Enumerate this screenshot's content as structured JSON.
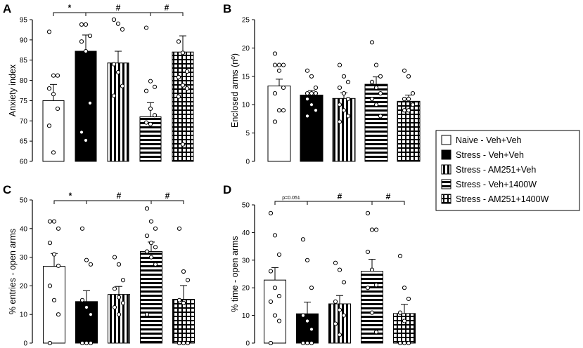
{
  "legend": [
    {
      "label": "Naive - Veh+Veh",
      "pattern": "white"
    },
    {
      "label": "Stress - Veh+Veh",
      "pattern": "black"
    },
    {
      "label": "Stress - AM251+Veh",
      "pattern": "vertical"
    },
    {
      "label": "Stress - Veh+1400W",
      "pattern": "horizontal"
    },
    {
      "label": "Stress - AM251+1400W",
      "pattern": "grid"
    }
  ],
  "chart_data": [
    {
      "panel": "A",
      "type": "bar",
      "ylabel": "Anxiety index",
      "ylim": [
        60,
        95
      ],
      "yticks": [
        60,
        65,
        70,
        75,
        80,
        85,
        90,
        95
      ],
      "categories": [
        "Naive - Veh+Veh",
        "Stress - Veh+Veh",
        "Stress - AM251+Veh",
        "Stress - Veh+1400W",
        "Stress - AM251+1400W"
      ],
      "values": [
        75.0,
        87.2,
        84.3,
        71.0,
        87.0
      ],
      "errors": [
        4.0,
        4.0,
        2.9,
        3.5,
        4.0
      ],
      "points": [
        [
          92,
          81.2,
          81.2,
          78,
          76.6,
          73,
          68.8,
          62.2
        ],
        [
          93.8,
          93.8,
          91,
          89.6,
          87.2,
          74.4,
          67.2,
          65.2
        ],
        [
          95,
          94,
          92.6,
          84,
          82,
          78.6,
          76.2
        ],
        [
          93,
          79.8,
          78.4,
          77.4,
          73,
          71.4,
          69.6,
          69.2
        ],
        [
          89.6,
          86.8,
          82.2,
          80.8,
          78.8,
          78,
          76,
          64.2
        ]
      ],
      "brackets": [
        {
          "from": 0,
          "to": 1,
          "label": "*"
        },
        {
          "from": 1,
          "to": 3,
          "label": "#"
        },
        {
          "from": 3,
          "to": 4,
          "label": "#"
        }
      ]
    },
    {
      "panel": "B",
      "type": "bar",
      "ylabel": "Enclosed arms (nº)",
      "ylim": [
        0,
        25
      ],
      "yticks": [
        0,
        5,
        10,
        15,
        20,
        25
      ],
      "categories": [
        "Naive - Veh+Veh",
        "Stress - Veh+Veh",
        "Stress - AM251+Veh",
        "Stress - Veh+1400W",
        "Stress - AM251+1400W"
      ],
      "values": [
        13.3,
        11.7,
        11.1,
        13.6,
        10.6
      ],
      "errors": [
        1.2,
        0.8,
        1.0,
        1.3,
        1.1
      ],
      "points": [
        [
          19,
          17,
          17,
          17,
          16,
          13,
          12,
          9,
          9,
          7
        ],
        [
          16,
          15,
          13,
          12,
          12,
          12,
          11,
          10,
          9,
          8
        ],
        [
          17,
          15,
          14,
          13,
          12,
          11,
          10,
          9,
          8,
          7
        ],
        [
          21,
          17,
          15,
          14,
          13,
          12,
          11,
          10,
          8
        ],
        [
          16,
          15,
          12,
          11,
          11,
          10,
          9,
          9
        ]
      ],
      "brackets": []
    },
    {
      "panel": "C",
      "type": "bar",
      "ylabel": "% entries - open arms",
      "ylim": [
        0,
        50
      ],
      "yticks": [
        0,
        10,
        20,
        30,
        40,
        50
      ],
      "categories": [
        "Naive - Veh+Veh",
        "Stress - Veh+Veh",
        "Stress - AM251+Veh",
        "Stress - Veh+1400W",
        "Stress - AM251+1400W"
      ],
      "values": [
        26.8,
        14.5,
        17.0,
        32.0,
        15.3
      ],
      "errors": [
        4.5,
        3.8,
        2.8,
        3.3,
        4.8
      ],
      "points": [
        [
          42.5,
          42.5,
          40,
          35,
          31,
          27,
          20,
          15,
          10,
          0
        ],
        [
          40,
          29,
          27.5,
          15,
          12.5,
          10,
          0,
          0,
          0
        ],
        [
          30,
          27.5,
          22,
          19,
          16,
          14,
          12.5,
          10
        ],
        [
          47,
          42.5,
          40,
          37.5,
          35,
          33.5,
          32,
          30,
          27.5,
          10
        ],
        [
          40,
          25,
          22,
          15,
          14,
          0,
          0,
          0
        ]
      ],
      "brackets": [
        {
          "from": 0,
          "to": 1,
          "label": "*"
        },
        {
          "from": 1,
          "to": 3,
          "label": "#"
        },
        {
          "from": 3,
          "to": 4,
          "label": "#"
        }
      ]
    },
    {
      "panel": "D",
      "type": "bar",
      "ylabel": "% time - open arms",
      "ylim": [
        0,
        50
      ],
      "yticks": [
        0,
        10,
        20,
        30,
        40,
        50
      ],
      "categories": [
        "Naive - Veh+Veh",
        "Stress - Veh+Veh",
        "Stress - AM251+Veh",
        "Stress - Veh+1400W",
        "Stress - AM251+1400W"
      ],
      "values": [
        22.8,
        10.6,
        14.2,
        26.0,
        10.7
      ],
      "errors": [
        4.5,
        4.2,
        3.0,
        4.3,
        3.3
      ],
      "points": [
        [
          47,
          39,
          32,
          26,
          20,
          17,
          15,
          10,
          8,
          0
        ],
        [
          37.5,
          30,
          20,
          10,
          8,
          5,
          0,
          0,
          0
        ],
        [
          29,
          26.5,
          22,
          15,
          12,
          10,
          7,
          3
        ],
        [
          47,
          41,
          41,
          33,
          26.5,
          21,
          20,
          11,
          4
        ],
        [
          31.5,
          20,
          16,
          11,
          8,
          0,
          0,
          0
        ]
      ],
      "brackets": [
        {
          "from": 0,
          "to": 1,
          "label": "p=0.051"
        },
        {
          "from": 1,
          "to": 3,
          "label": "#"
        },
        {
          "from": 3,
          "to": 4,
          "label": "#"
        }
      ]
    }
  ]
}
